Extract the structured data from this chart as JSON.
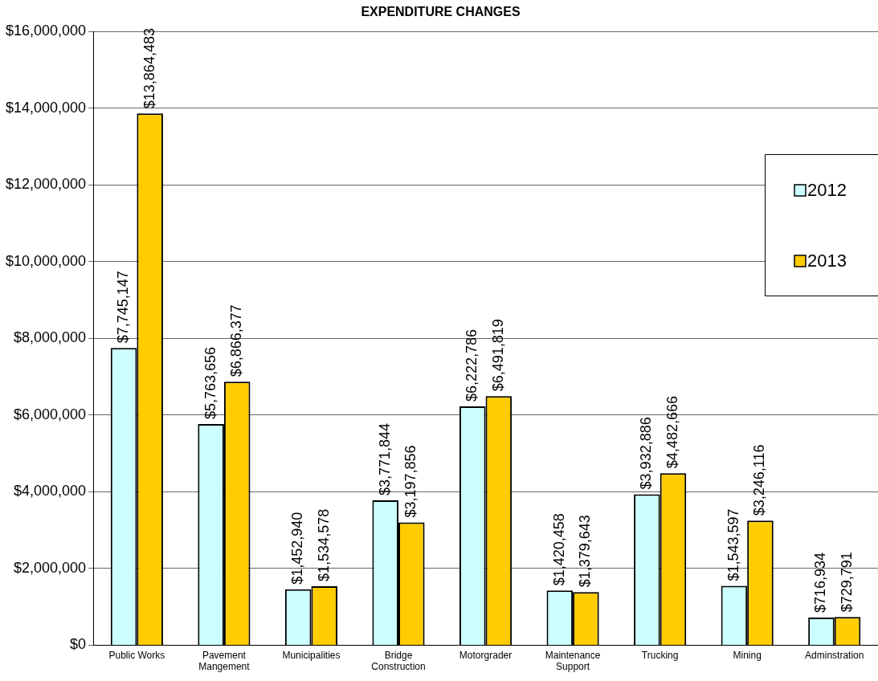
{
  "chart_data": {
    "type": "bar",
    "title": "EXPENDITURE CHANGES",
    "categories": [
      "Public Works",
      "Pavement Mangement",
      "Municipalities",
      "Bridge Construction",
      "Motorgrader",
      "Maintenance Support",
      "Trucking",
      "Mining",
      "Adminstration"
    ],
    "series": [
      {
        "name": "2012",
        "color": "#ccffff",
        "values": [
          7745147,
          5763656,
          1452940,
          3771844,
          6222786,
          1420458,
          3932886,
          1543597,
          716934
        ],
        "value_labels": [
          "$7,745,147",
          "$5,763,656",
          "$1,452,940",
          "$3,771,844",
          "$6,222,786",
          "$1,420,458",
          "$3,932,886",
          "$1,543,597",
          "$716,934"
        ]
      },
      {
        "name": "2013",
        "color": "#ffcc00",
        "values": [
          13864483,
          6866377,
          1534578,
          3197856,
          6491819,
          1379643,
          4482666,
          3246116,
          729791
        ],
        "value_labels": [
          "$13,864,483",
          "$6,866,377",
          "$1,534,578",
          "$3,197,856",
          "$6,491,819",
          "$1,379,643",
          "$4,482,666",
          "$3,246,116",
          "$729,791"
        ]
      }
    ],
    "ylim": [
      0,
      16000000
    ],
    "yticks": [
      {
        "value": 0,
        "label": "$0"
      },
      {
        "value": 2000000,
        "label": "$2,000,000"
      },
      {
        "value": 4000000,
        "label": "$4,000,000"
      },
      {
        "value": 6000000,
        "label": "$6,000,000"
      },
      {
        "value": 8000000,
        "label": "$8,000,000"
      },
      {
        "value": 10000000,
        "label": "$10,000,000"
      },
      {
        "value": 12000000,
        "label": "$12,000,000"
      },
      {
        "value": 14000000,
        "label": "$14,000,000"
      },
      {
        "value": 16000000,
        "label": "$16,000,000"
      }
    ],
    "grid": "y",
    "legend": "right"
  }
}
